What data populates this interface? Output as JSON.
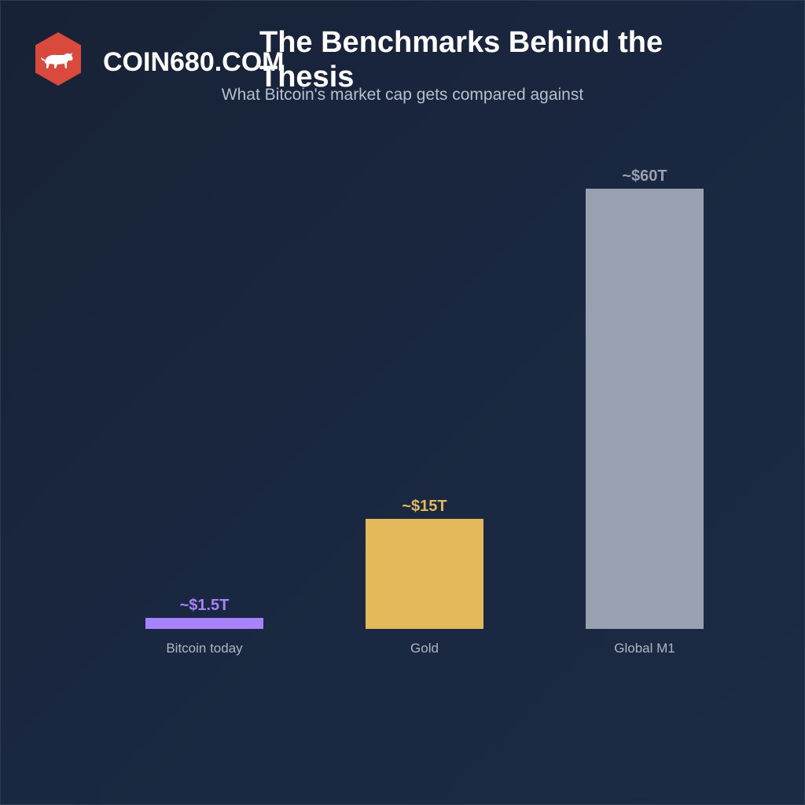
{
  "brand": {
    "name": "COIN680.COM",
    "logo_icon": "bull-icon",
    "logo_color": "#d94a3c"
  },
  "chart_data": {
    "type": "bar",
    "title": "The Benchmarks Behind the Thesis",
    "subtitle": "What Bitcoin's market cap gets compared against",
    "categories": [
      "Bitcoin today",
      "Gold",
      "Global M1"
    ],
    "values": [
      1.5,
      15,
      60
    ],
    "value_labels": [
      "~$1.5T",
      "~$15T",
      "~$60T"
    ],
    "colors": [
      "#a782fa",
      "#e4b95b",
      "#97a1af"
    ],
    "xlabel": "",
    "ylabel": "",
    "grid": false,
    "legend": "none"
  }
}
